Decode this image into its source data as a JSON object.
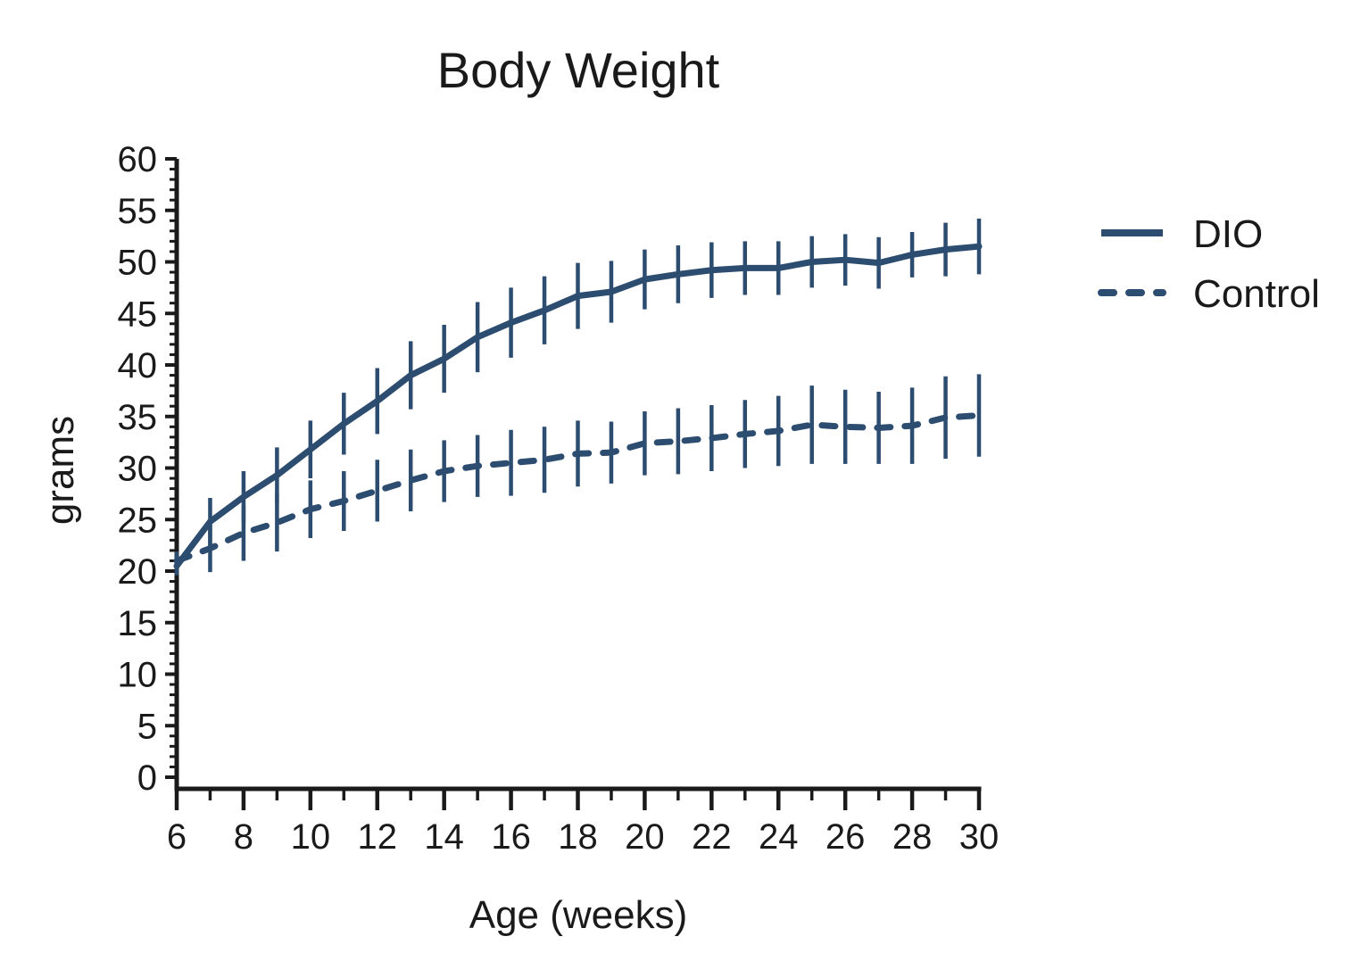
{
  "title": "Body Weight",
  "y_axis": {
    "label": "grams",
    "min": 0,
    "max": 60,
    "major_step": 5,
    "minor_step": 1
  },
  "x_axis": {
    "label": "Age (weeks)",
    "min": 6,
    "max": 30,
    "major_step": 2,
    "minor_step": 1
  },
  "legend": {
    "position": "right-of-plot"
  },
  "colors": {
    "series": "#2c4c70",
    "text": "#1a1a1a",
    "axis": "#1a1a1a",
    "background": "#ffffff"
  },
  "chart_data": {
    "type": "line",
    "title": "Body Weight",
    "xlabel": "Age (weeks)",
    "ylabel": "grams",
    "xlim": [
      6,
      30
    ],
    "ylim": [
      0,
      60
    ],
    "x_major_tick_step": 2,
    "x_minor_tick_step": 1,
    "y_major_tick_step": 5,
    "y_minor_tick_step": 1,
    "grid": false,
    "legend_position": "right",
    "error_bar_style": "vertical bars, no caps, +/- SD",
    "x": [
      6,
      7,
      8,
      9,
      10,
      11,
      12,
      13,
      14,
      15,
      16,
      17,
      18,
      19,
      20,
      21,
      22,
      23,
      24,
      25,
      26,
      27,
      28,
      29,
      30
    ],
    "series": [
      {
        "name": "DIO",
        "line_style": "solid",
        "color": "#2c4c70",
        "values": [
          20.5,
          24.8,
          27.2,
          29.3,
          31.8,
          34.3,
          36.5,
          39.0,
          40.6,
          42.7,
          44.1,
          45.3,
          46.7,
          47.1,
          48.3,
          48.8,
          49.2,
          49.4,
          49.4,
          50.0,
          50.2,
          49.9,
          50.7,
          51.2,
          51.5
        ],
        "error": [
          0.9,
          2.3,
          2.5,
          2.7,
          2.8,
          3.0,
          3.2,
          3.3,
          3.3,
          3.4,
          3.4,
          3.3,
          3.2,
          3.0,
          2.9,
          2.8,
          2.7,
          2.6,
          2.6,
          2.5,
          2.5,
          2.5,
          2.2,
          2.6,
          2.7
        ]
      },
      {
        "name": "Control",
        "line_style": "dashed",
        "color": "#2c4c70",
        "values": [
          21.0,
          22.2,
          23.7,
          24.7,
          26.0,
          26.8,
          27.8,
          28.8,
          29.7,
          30.2,
          30.5,
          30.8,
          31.4,
          31.5,
          32.4,
          32.6,
          32.9,
          33.3,
          33.6,
          34.2,
          34.0,
          33.9,
          34.1,
          34.9,
          35.1
        ],
        "error": [
          0.9,
          2.3,
          2.7,
          2.8,
          2.8,
          2.9,
          3.0,
          3.0,
          3.0,
          3.0,
          3.2,
          3.2,
          3.2,
          3.0,
          3.1,
          3.2,
          3.2,
          3.3,
          3.4,
          3.8,
          3.6,
          3.5,
          3.7,
          4.0,
          4.0
        ]
      }
    ]
  }
}
